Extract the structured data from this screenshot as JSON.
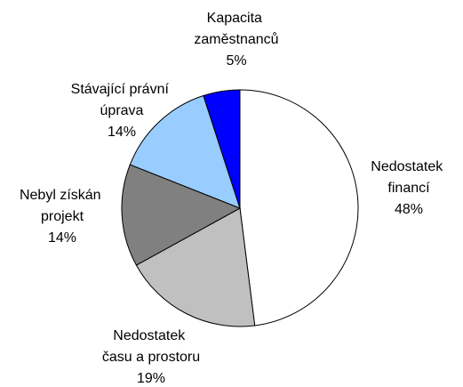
{
  "chart_data": {
    "type": "pie",
    "categories": [
      "Nedostatek financí",
      "Nedostatek času a prostoru",
      "Nebyl získán projekt",
      "Stávající právní úprava",
      "Kapacita zaměstnanců"
    ],
    "values": [
      48,
      19,
      14,
      14,
      5
    ],
    "value_labels": [
      "48%",
      "19%",
      "14%",
      "14%",
      "5%"
    ],
    "colors": [
      "#ffffff",
      "#c0c0c0",
      "#808080",
      "#99ccff",
      "#0000ff"
    ]
  }
}
